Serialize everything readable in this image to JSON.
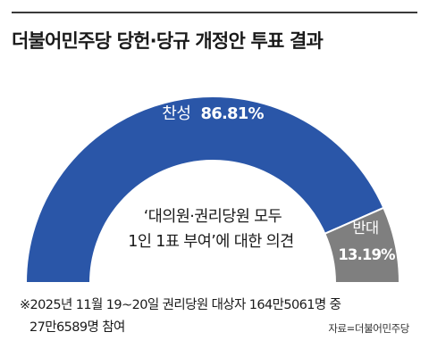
{
  "title": "더불어민주당 당헌·당규 개정안 투표 결과",
  "center_label": [
    "‘대의원·권리당원 모두",
    "1인 1표 부여’에 대한 의견"
  ],
  "chart_data": {
    "type": "pie",
    "title": "더불어민주당 당헌·당규 개정안 투표 결과",
    "slices": [
      {
        "label": "찬성",
        "value": 86.81,
        "display": "86.81%",
        "color": "#2a56a8"
      },
      {
        "label": "반대",
        "value": 13.19,
        "display": "13.19%",
        "color": "#7f7f7f"
      }
    ]
  },
  "footnote": [
    "※2025년 11월 19~20일 권리당원 대상자 164만5061명 중",
    "27만6589명 참여"
  ],
  "source": "자료=더불어민주당"
}
